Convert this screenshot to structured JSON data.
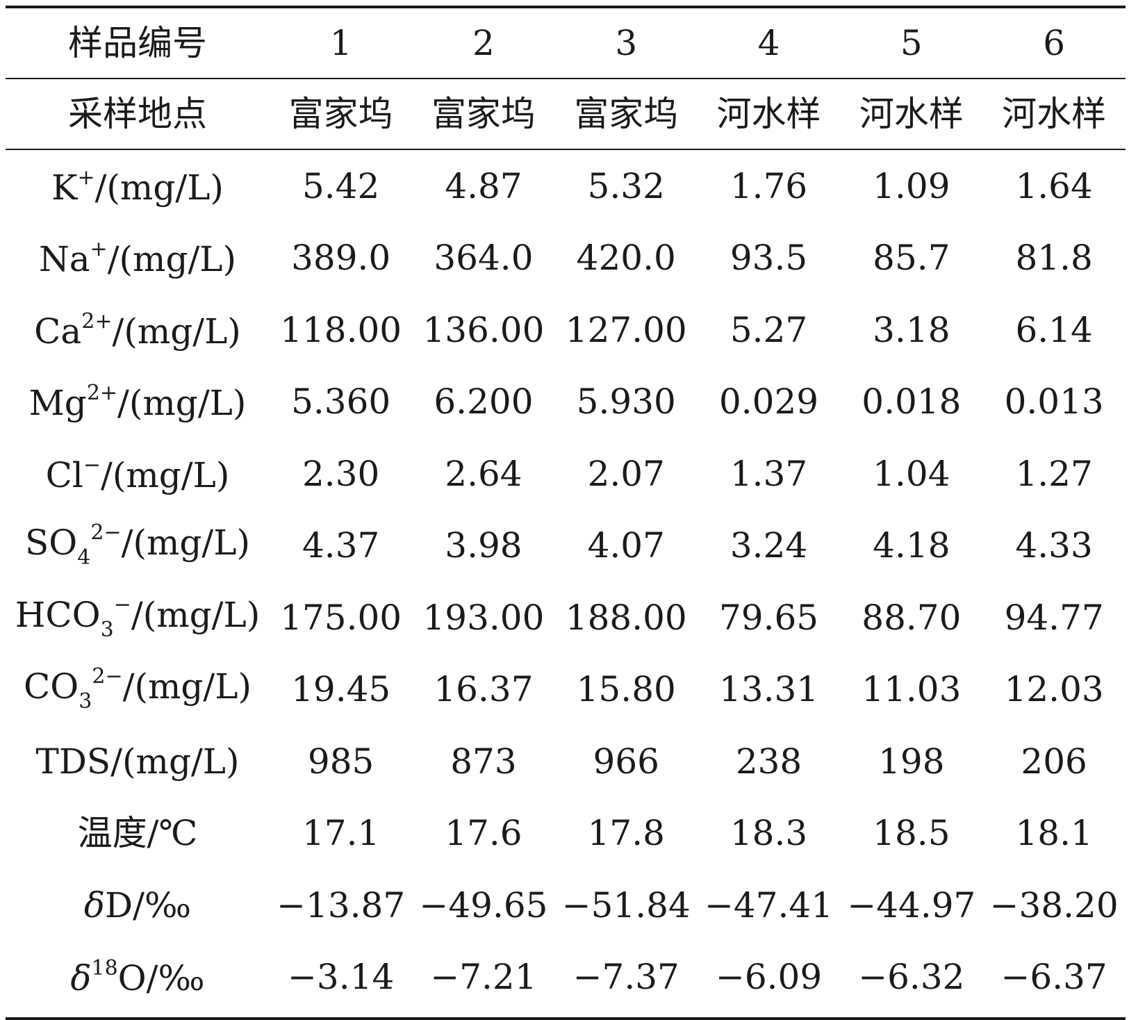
{
  "header": {
    "label": "样品编号",
    "samples": [
      "1",
      "2",
      "3",
      "4",
      "5",
      "6"
    ]
  },
  "location": {
    "label": "采样地点",
    "values": [
      "富家坞",
      "富家坞",
      "富家坞",
      "河水样",
      "河水样",
      "河水样"
    ]
  },
  "rows": [
    {
      "species": "K",
      "sup": "+",
      "sub": "",
      "unit": "/(mg/L)",
      "values": [
        "5.42",
        "4.87",
        "5.32",
        "1.76",
        "1.09",
        "1.64"
      ]
    },
    {
      "species": "Na",
      "sup": "+",
      "sub": "",
      "unit": "/(mg/L)",
      "values": [
        "389.0",
        "364.0",
        "420.0",
        "93.5",
        "85.7",
        "81.8"
      ]
    },
    {
      "species": "Ca",
      "sup": "2+",
      "sub": "",
      "unit": "/(mg/L)",
      "values": [
        "118.00",
        "136.00",
        "127.00",
        "5.27",
        "3.18",
        "6.14"
      ]
    },
    {
      "species": "Mg",
      "sup": "2+",
      "sub": "",
      "unit": "/(mg/L)",
      "values": [
        "5.360",
        "6.200",
        "5.930",
        "0.029",
        "0.018",
        "0.013"
      ]
    },
    {
      "species": "Cl",
      "sup": "−",
      "sub": "",
      "unit": "/(mg/L)",
      "values": [
        "2.30",
        "2.64",
        "2.07",
        "1.37",
        "1.04",
        "1.27"
      ]
    },
    {
      "species": "SO",
      "sub": "4",
      "sup": "2−",
      "unit": "/(mg/L)",
      "values": [
        "4.37",
        "3.98",
        "4.07",
        "3.24",
        "4.18",
        "4.33"
      ]
    },
    {
      "species": "HCO",
      "sub": "3",
      "sup": "−",
      "unit": "/(mg/L)",
      "values": [
        "175.00",
        "193.00",
        "188.00",
        "79.65",
        "88.70",
        "94.77"
      ]
    },
    {
      "species": "CO",
      "sub": "3",
      "sup": "2−",
      "unit": "/(mg/L)",
      "values": [
        "19.45",
        "16.37",
        "15.80",
        "13.31",
        "11.03",
        "12.03"
      ]
    },
    {
      "species": "TDS",
      "sup": "",
      "sub": "",
      "unit": "/(mg/L)",
      "values": [
        "985",
        "873",
        "966",
        "238",
        "198",
        "206"
      ]
    },
    {
      "species": "温度",
      "sup": "",
      "sub": "",
      "unit": "/℃",
      "values": [
        "17.1",
        "17.6",
        "17.8",
        "18.3",
        "18.5",
        "18.1"
      ]
    },
    {
      "species": "δ",
      "italic": true,
      "after": "D",
      "sup": "",
      "sub": "",
      "unit": "/‰",
      "values": [
        "−13.87",
        "−49.65",
        "−51.84",
        "−47.41",
        "−44.97",
        "−38.20"
      ]
    },
    {
      "species": "δ",
      "italic": true,
      "sup": "18",
      "after": "O",
      "sub": "",
      "unit": "/‰",
      "values": [
        "−3.14",
        "−7.21",
        "−7.37",
        "−6.09",
        "−6.32",
        "−6.37"
      ]
    }
  ]
}
